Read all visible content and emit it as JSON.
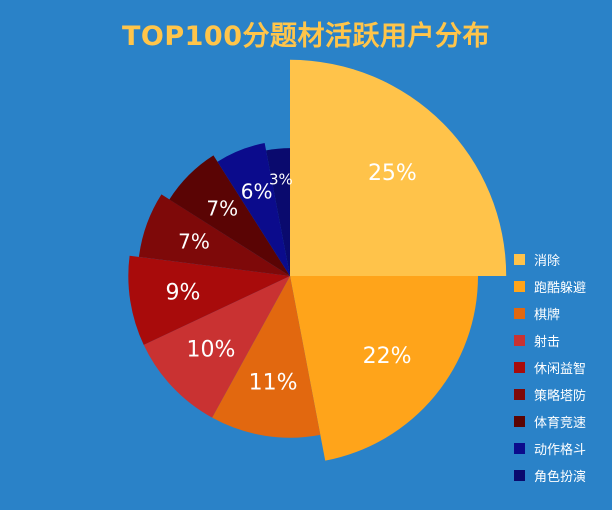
{
  "chart_data": {
    "type": "pie",
    "title": "TOP100分题材活跃用户分布",
    "slices": [
      {
        "label": "消除",
        "value": 25,
        "display": "25%",
        "color": "#ffc34a",
        "scale": 1.15
      },
      {
        "label": "跑酷躲避",
        "value": 22,
        "display": "22%",
        "color": "#ffa41a",
        "scale": 1.0
      },
      {
        "label": "棋牌",
        "value": 11,
        "display": "11%",
        "color": "#e2680f",
        "scale": 0.86
      },
      {
        "label": "射击",
        "value": 10,
        "display": "10%",
        "color": "#c93232",
        "scale": 0.86
      },
      {
        "label": "休闲益智",
        "value": 9,
        "display": "9%",
        "color": "#a80b0b",
        "scale": 0.86
      },
      {
        "label": "策略塔防",
        "value": 7,
        "display": "7%",
        "color": "#7e0909",
        "scale": 0.81
      },
      {
        "label": "体育竞速",
        "value": 7,
        "display": "7%",
        "color": "#5a0404",
        "scale": 0.76
      },
      {
        "label": "动作格斗",
        "value": 6,
        "display": "6%",
        "color": "#0b0b8c",
        "scale": 0.72
      },
      {
        "label": "角色扮演",
        "value": 3,
        "display": "3%",
        "color": "#0a0a6e",
        "scale": 0.68
      }
    ],
    "legend_position": "right"
  }
}
